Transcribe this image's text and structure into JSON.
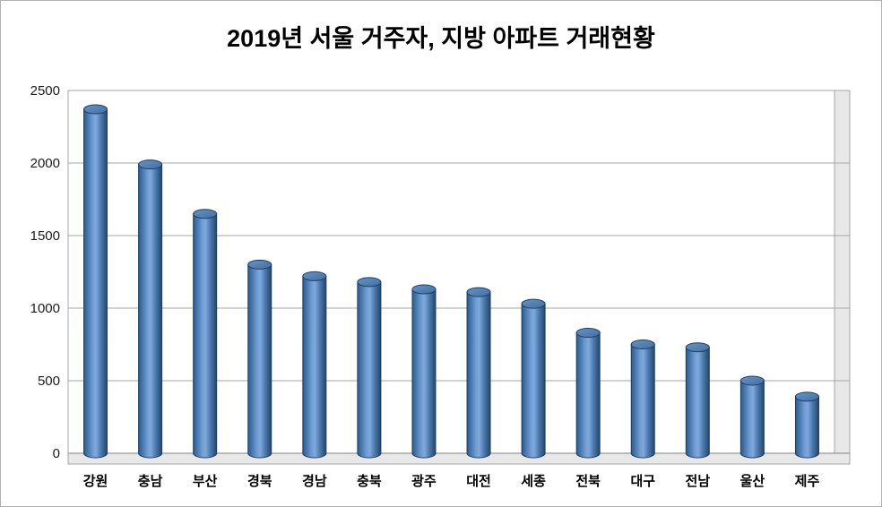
{
  "title": "2019년 서울 거주자, 지방 아파트 거래현황",
  "chart_data": {
    "type": "bar",
    "subtype": "3d-cylinder",
    "title": "2019년 서울 거주자, 지방 아파트 거래현황",
    "categories": [
      "강원",
      "충남",
      "부산",
      "경북",
      "경남",
      "충북",
      "광주",
      "대전",
      "세종",
      "전북",
      "대구",
      "전남",
      "울산",
      "제주"
    ],
    "values": [
      2370,
      1990,
      1650,
      1300,
      1220,
      1180,
      1130,
      1110,
      1030,
      830,
      750,
      730,
      500,
      390
    ],
    "xlabel": "",
    "ylabel": "",
    "ylim": [
      0,
      2500
    ],
    "yticks": [
      0,
      500,
      1000,
      1500,
      2000,
      2500
    ],
    "grid": true,
    "legend_position": "none",
    "colors": {
      "bar_fill": "#4f81bd",
      "bar_edge": "#1c3e63",
      "gridline": "#a6a6a6",
      "axis_line": "#808080",
      "wall_fill": "#e8e8e8",
      "tick_text": "#1a1a1a",
      "category_text": "#000000"
    }
  }
}
